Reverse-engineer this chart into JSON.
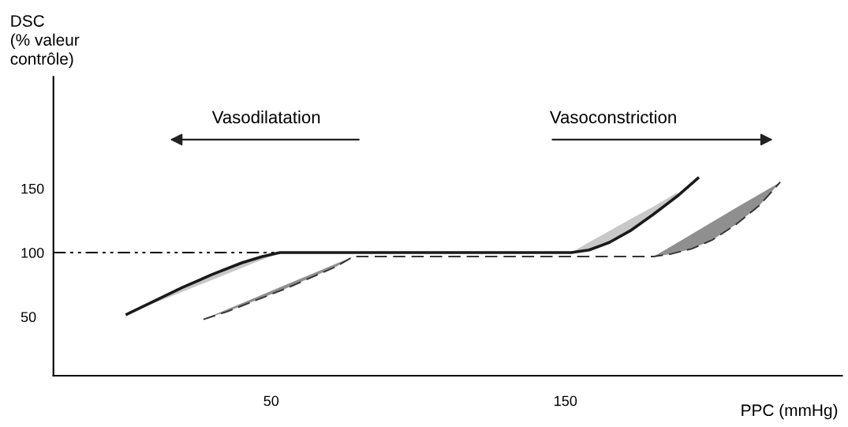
{
  "chart_data": {
    "type": "line",
    "xlabel": "PPC (mmHg)",
    "ylabel": "DSC\n(% valeur\ncontrôle)",
    "xlim": [
      -24,
      244
    ],
    "ylim": [
      4,
      237
    ],
    "xticks": [
      50,
      150
    ],
    "yticks": [
      50,
      100,
      150
    ],
    "grid": false,
    "legend": false,
    "marker": "none",
    "annotations": [
      "Vasodilatation",
      "Vasoconstriction"
    ],
    "series": [
      {
        "color": "#000000",
        "line_style": "dashdot",
        "x": [
          -24,
          52
        ],
        "values": [
          100,
          100
        ]
      },
      {
        "color": "#1a1a1a",
        "line_style": "solid",
        "x": [
          1,
          10,
          20,
          30,
          40,
          47,
          53,
          100,
          152,
          158,
          165,
          172,
          180,
          188,
          195
        ],
        "values": [
          52,
          62,
          73,
          83,
          92,
          97,
          100,
          100,
          100,
          102,
          108,
          117,
          130,
          144,
          158
        ],
        "lower": [
          52,
          60.3,
          69.5,
          78.8,
          88,
          94.5,
          100,
          null,
          100,
          102,
          108,
          117,
          130,
          144,
          null
        ],
        "upper": [
          52,
          62,
          73,
          83,
          92,
          97,
          100,
          null,
          100,
          108,
          117,
          126,
          136,
          147,
          null
        ]
      },
      {
        "color": "#333333",
        "line_style": "dashed",
        "x": [
          27,
          35,
          45,
          55,
          65,
          72,
          78,
          130,
          180,
          186,
          193,
          200,
          208,
          216,
          223
        ],
        "values": [
          48,
          54,
          63,
          72,
          82,
          89,
          97,
          97,
          97,
          99,
          103,
          110,
          122,
          137,
          155
        ],
        "lower": [
          48,
          54,
          63,
          72,
          82,
          89,
          97,
          null,
          97,
          99,
          103,
          110,
          122,
          137,
          155
        ],
        "upper": [
          48,
          55.7,
          65.3,
          74.9,
          84.5,
          91.2,
          97,
          null,
          97,
          105,
          114.5,
          124,
          135,
          145.5,
          155
        ]
      }
    ]
  }
}
